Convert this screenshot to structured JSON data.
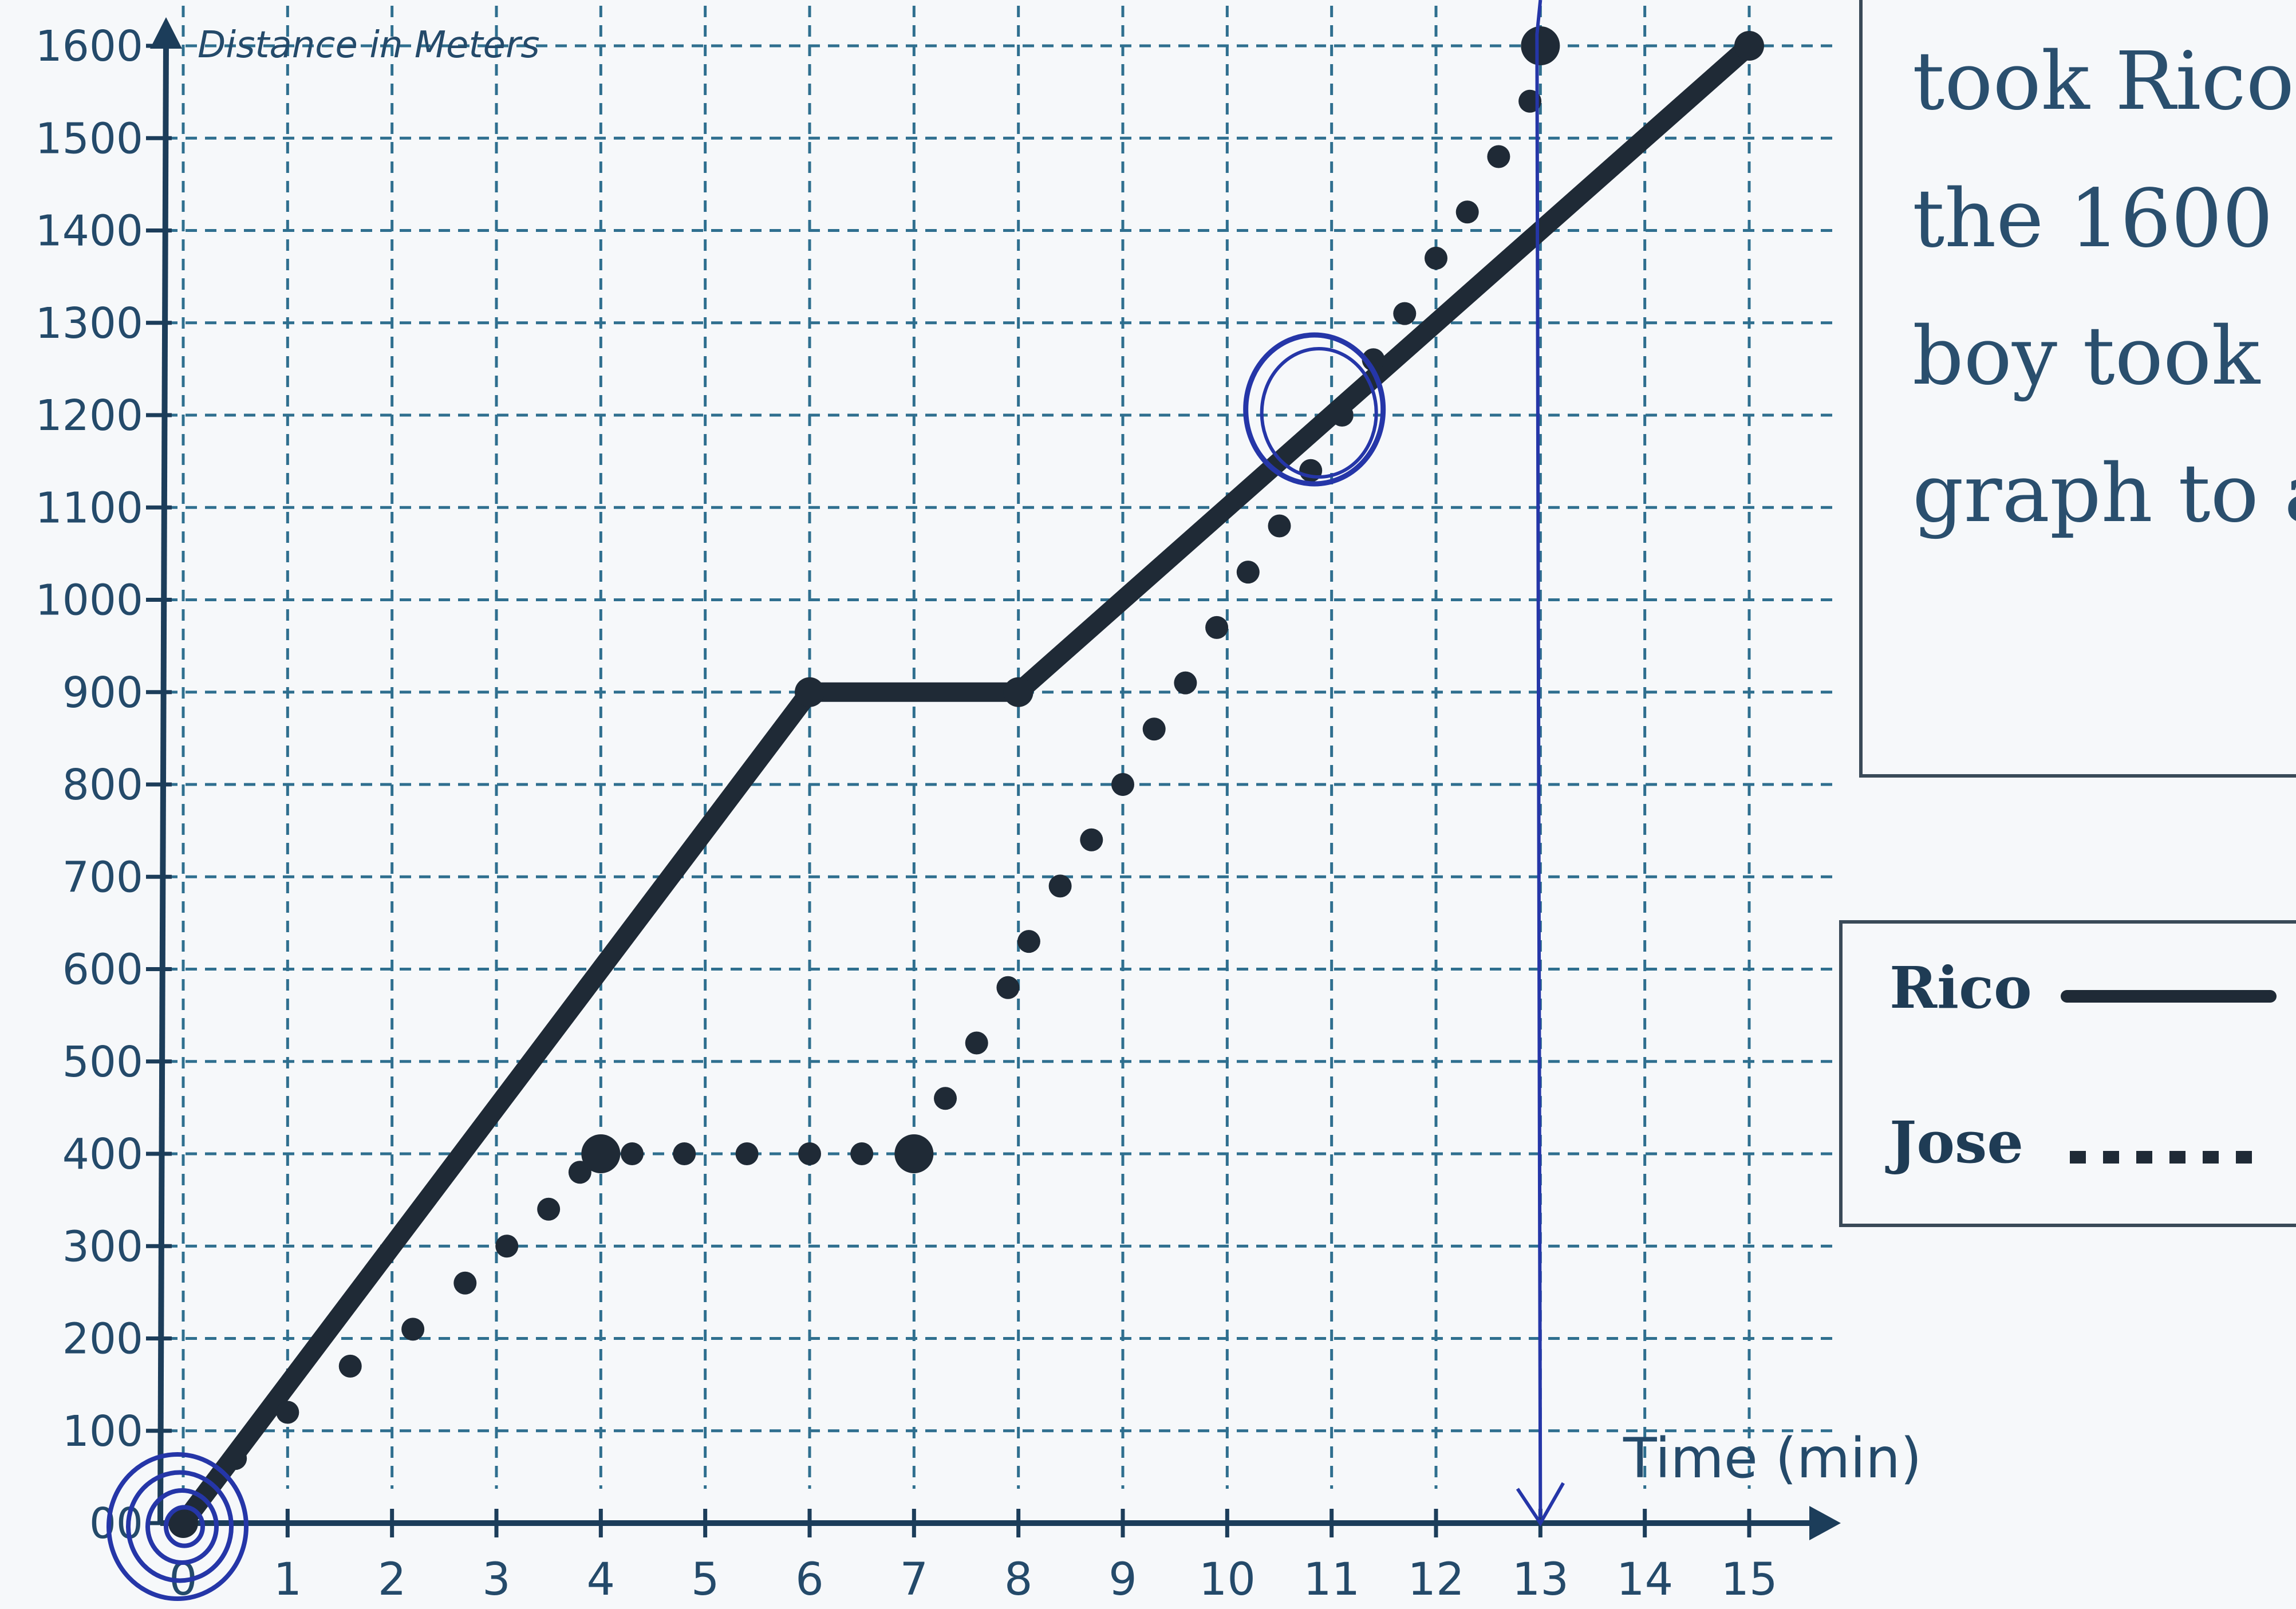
{
  "chart_data": {
    "type": "line",
    "title": "",
    "xlabel": "Time (min)",
    "ylabel": "Distance in Meters",
    "x_ticks": [
      "0",
      "1",
      "2",
      "3",
      "4",
      "5",
      "6",
      "7",
      "8",
      "9",
      "10",
      "11",
      "12",
      "13",
      "14",
      "15"
    ],
    "y_ticks": [
      "00",
      "100",
      "200",
      "300",
      "400",
      "500",
      "600",
      "700",
      "800",
      "900",
      "1000",
      "1100",
      "1200",
      "1300",
      "1400",
      "1500",
      "1600"
    ],
    "xlim": [
      0,
      15
    ],
    "ylim": [
      0,
      1600
    ],
    "grid": true,
    "legend_position": "right",
    "series": [
      {
        "name": "Rico",
        "style": "solid",
        "color": "#1f2a36",
        "points": [
          [
            0,
            0
          ],
          [
            6,
            900
          ],
          [
            8,
            900
          ],
          [
            15,
            1600
          ]
        ]
      },
      {
        "name": "Jose",
        "style": "dotted",
        "color": "#1f2a36",
        "points": [
          [
            0,
            0
          ],
          [
            0.5,
            70
          ],
          [
            1,
            120
          ],
          [
            1.6,
            170
          ],
          [
            2.2,
            210
          ],
          [
            2.7,
            260
          ],
          [
            3.1,
            300
          ],
          [
            3.5,
            340
          ],
          [
            3.8,
            380
          ],
          [
            4,
            400
          ],
          [
            4.3,
            400
          ],
          [
            4.8,
            400
          ],
          [
            5.4,
            400
          ],
          [
            6,
            400
          ],
          [
            6.5,
            400
          ],
          [
            7,
            400
          ],
          [
            7.3,
            460
          ],
          [
            7.6,
            520
          ],
          [
            7.9,
            580
          ],
          [
            8.1,
            630
          ],
          [
            8.4,
            690
          ],
          [
            8.7,
            740
          ],
          [
            9,
            800
          ],
          [
            9.3,
            860
          ],
          [
            9.6,
            910
          ],
          [
            9.9,
            970
          ],
          [
            10.2,
            1030
          ],
          [
            10.5,
            1080
          ],
          [
            10.8,
            1140
          ],
          [
            11.1,
            1200
          ],
          [
            11.4,
            1260
          ],
          [
            11.7,
            1310
          ],
          [
            12,
            1370
          ],
          [
            12.3,
            1420
          ],
          [
            12.6,
            1480
          ],
          [
            12.9,
            1540
          ],
          [
            13,
            1600
          ]
        ]
      }
    ]
  },
  "question_lines": [
    "took Rico",
    "the 1600",
    "boy took",
    "graph to a"
  ],
  "legend": [
    {
      "label": "Rico",
      "style": "solid"
    },
    {
      "label": "Jose",
      "style": "dotted"
    }
  ],
  "colors": {
    "grid": "#2f6f8f",
    "axis": "#1c3d5a",
    "ink": "#1f2a36",
    "pen_blue": "#2536a8"
  }
}
